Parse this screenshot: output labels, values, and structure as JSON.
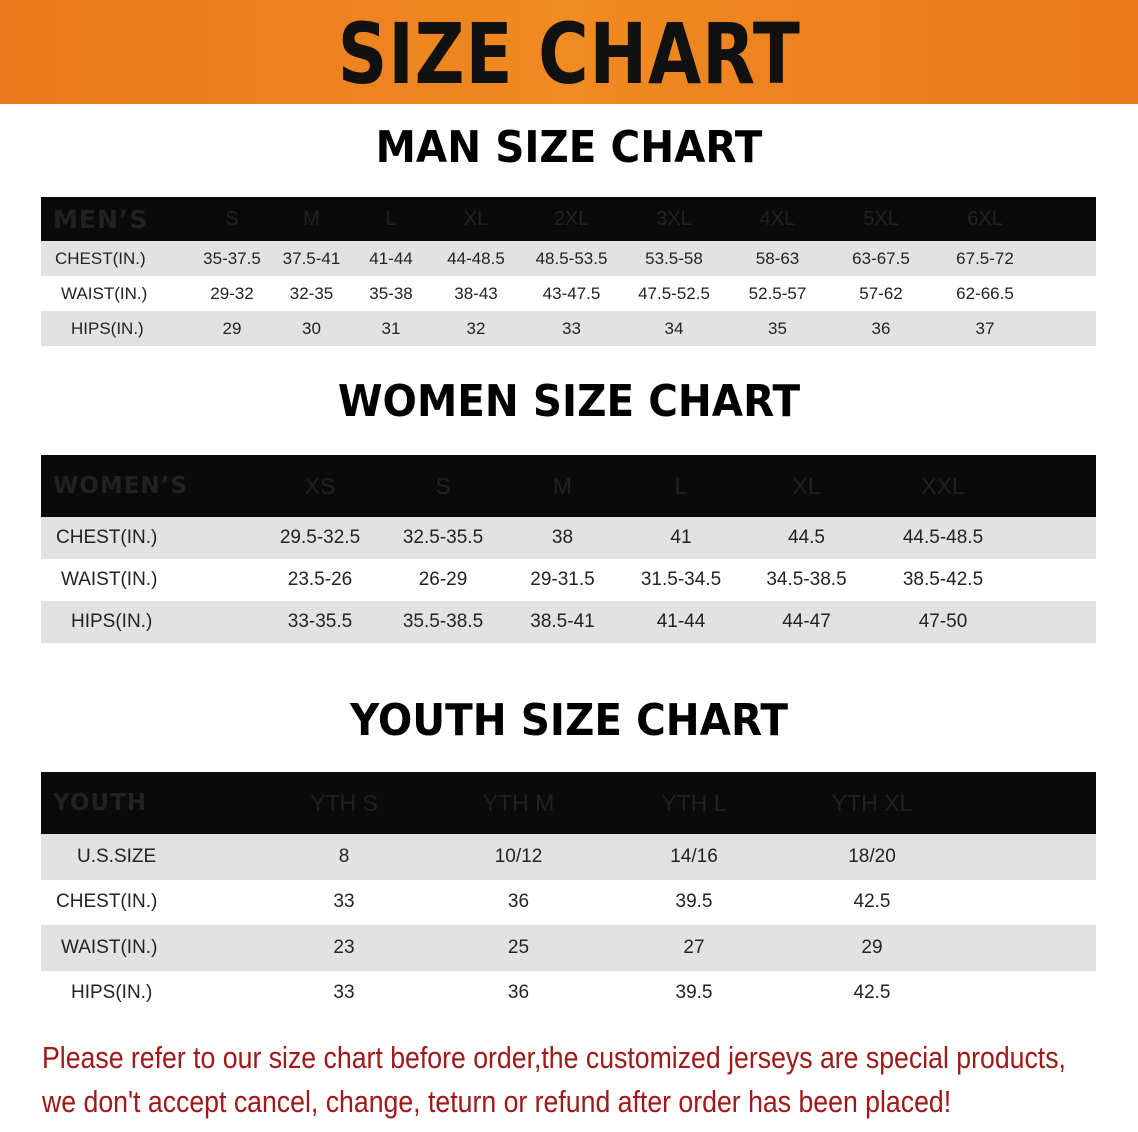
{
  "banner_title": "SIZE CHART",
  "colors": {
    "banner": "#f08a22",
    "header_row": "#0a0a0a",
    "stripe": "#e2e2e2",
    "note": "#a01818"
  },
  "tables": [
    {
      "id": "men",
      "title": "MAN SIZE CHART",
      "header": [
        "MEN’S",
        "S",
        "M",
        "L",
        "XL",
        "2XL",
        "3XL",
        "4XL",
        "5XL",
        "6XL"
      ],
      "rows": [
        [
          "CHEST(IN.)",
          "35-37.5",
          "37.5-41",
          "41-44",
          "44-48.5",
          "48.5-53.5",
          "53.5-58",
          "58-63",
          "63-67.5",
          "67.5-72"
        ],
        [
          "WAIST(IN.)",
          "29-32",
          "32-35",
          "35-38",
          "38-43",
          "43-47.5",
          "47.5-52.5",
          "52.5-57",
          "57-62",
          "62-66.5"
        ],
        [
          "HIPS(IN.)",
          "29",
          "30",
          "31",
          "32",
          "33",
          "34",
          "35",
          "36",
          "37"
        ]
      ]
    },
    {
      "id": "women",
      "title": "WOMEN SIZE CHART",
      "header": [
        "WOMEN’S",
        "XS",
        "S",
        "M",
        "L",
        "XL",
        "XXL"
      ],
      "rows": [
        [
          "CHEST(IN.)",
          "29.5-32.5",
          "32.5-35.5",
          "38",
          "41",
          "44.5",
          "44.5-48.5"
        ],
        [
          "WAIST(IN.)",
          "23.5-26",
          "26-29",
          "29-31.5",
          "31.5-34.5",
          "34.5-38.5",
          "38.5-42.5"
        ],
        [
          "HIPS(IN.)",
          "33-35.5",
          "35.5-38.5",
          "38.5-41",
          "41-44",
          "44-47",
          "47-50"
        ]
      ]
    },
    {
      "id": "youth",
      "title": "YOUTH SIZE CHART",
      "header": [
        "YOUTH",
        "YTH S",
        "YTH M",
        "YTH L",
        "YTH XL"
      ],
      "rows": [
        [
          "U.S.SIZE",
          "8",
          "10/12",
          "14/16",
          "18/20"
        ],
        [
          "CHEST(IN.)",
          "33",
          "36",
          "39.5",
          "42.5"
        ],
        [
          "WAIST(IN.)",
          "23",
          "25",
          "27",
          "29"
        ],
        [
          "HIPS(IN.)",
          "33",
          "36",
          "39.5",
          "42.5"
        ]
      ]
    }
  ],
  "note": [
    "Please refer to our size chart before order,the customized jerseys are special products,",
    "we don't accept cancel, change, teturn or refund after order has been placed!"
  ]
}
